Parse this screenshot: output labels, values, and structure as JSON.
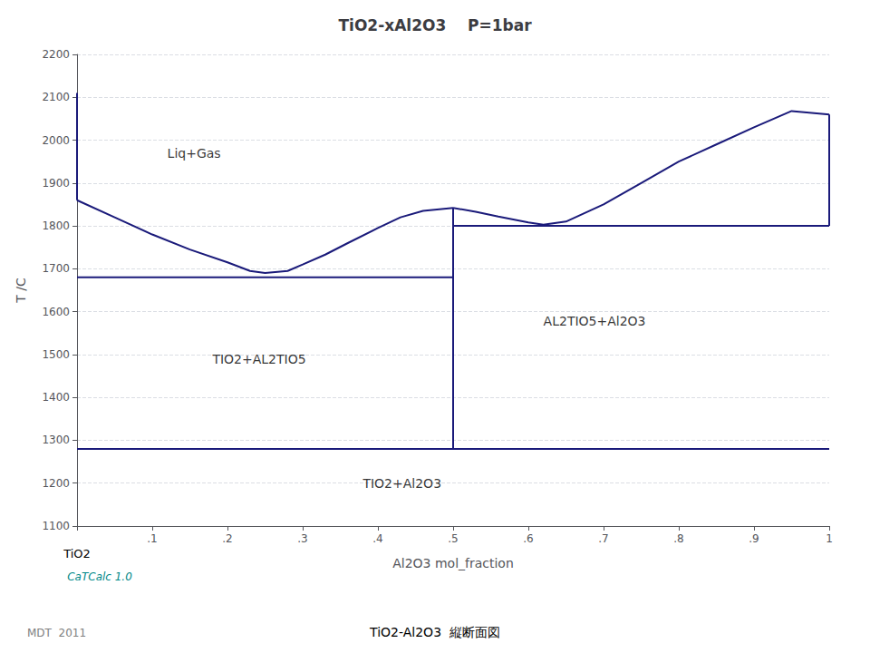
{
  "chart_data": {
    "type": "line",
    "title": "TiO2-xAl2O3    P=1bar",
    "xlabel": "Al2O3 mol_fraction",
    "ylabel": "T /C",
    "xlabel_left": "TiO2",
    "color": "#1a1a7a",
    "grid": true,
    "xlim": [
      0.0,
      1.0
    ],
    "ylim": [
      1100,
      2200
    ],
    "xticks": [
      {
        "value": 0.0,
        "label": null
      },
      {
        "value": 0.1,
        "label": ".1"
      },
      {
        "value": 0.2,
        "label": ".2"
      },
      {
        "value": 0.3,
        "label": ".3"
      },
      {
        "value": 0.4,
        "label": ".4"
      },
      {
        "value": 0.5,
        "label": ".5"
      },
      {
        "value": 0.6,
        "label": ".6"
      },
      {
        "value": 0.7,
        "label": ".7"
      },
      {
        "value": 0.8,
        "label": ".8"
      },
      {
        "value": 0.9,
        "label": ".9"
      },
      1
    ],
    "yticks": [
      1100,
      1200,
      1300,
      1400,
      1500,
      1600,
      1700,
      1800,
      1900,
      2000,
      2100,
      2200
    ],
    "series": [
      {
        "x": [
          0.0,
          1.0
        ],
        "values": [
          1280,
          1280
        ]
      },
      {
        "x": [
          0.0,
          0.5
        ],
        "values": [
          1680,
          1680
        ]
      },
      {
        "x": [
          0.5,
          1.0
        ],
        "values": [
          1800,
          1800
        ]
      },
      {
        "x": [
          0.5,
          0.5
        ],
        "values": [
          1280,
          1842
        ]
      },
      {
        "x": [
          1.0,
          1.0
        ],
        "values": [
          1800,
          2060
        ]
      },
      {
        "x": [
          0.0,
          0.05,
          0.1,
          0.15,
          0.2,
          0.23,
          0.25,
          0.28,
          0.3,
          0.33,
          0.36,
          0.4,
          0.43,
          0.46,
          0.5
        ],
        "values": [
          1860,
          1820,
          1780,
          1745,
          1715,
          1695,
          1690,
          1695,
          1710,
          1733,
          1760,
          1795,
          1820,
          1835,
          1842
        ]
      },
      {
        "x": [
          0.5,
          0.53,
          0.56,
          0.58,
          0.6,
          0.62,
          0.65,
          0.7,
          0.75,
          0.8,
          0.85,
          0.9,
          0.95,
          1.0
        ],
        "values": [
          1842,
          1833,
          1822,
          1815,
          1808,
          1803,
          1810,
          1850,
          1900,
          1950,
          1990,
          2030,
          2068,
          2060
        ]
      },
      {
        "x": [
          0.0,
          0.0
        ],
        "values": [
          1860,
          2110
        ]
      }
    ],
    "annotations": [
      {
        "text": "Liq+Gas",
        "x": 0.12,
        "y": 1950
      },
      {
        "text": "TIO2+AL2TIO5",
        "x": 0.18,
        "y": 1470
      },
      {
        "text": "AL2TIO5+Al2O3",
        "x": 0.62,
        "y": 1560
      },
      {
        "text": "TIO2+Al2O3",
        "x": 0.38,
        "y": 1180
      }
    ],
    "notes": [
      {
        "text": "CaTCalc 1.0",
        "color": "#008888"
      },
      {
        "text": "MDT  2011",
        "color": "gray"
      },
      {
        "text": "TiO2-Al2O3  縦断面図"
      }
    ]
  }
}
